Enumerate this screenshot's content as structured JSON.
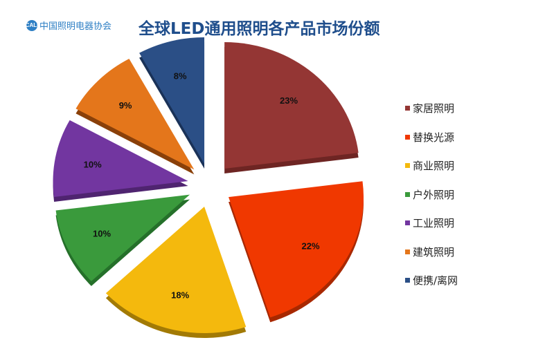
{
  "header": {
    "logo_mark": "CALI",
    "logo_text": "中国照明电器协会",
    "title": "全球LED通用照明各产品市场份额"
  },
  "chart_data": {
    "type": "pie",
    "title": "全球LED通用照明各产品市场份额",
    "style": "3d-exploded",
    "start_angle": "12 o'clock",
    "direction": "clockwise",
    "categories": [
      "家居照明",
      "替换光源",
      "商业照明",
      "户外照明",
      "工业照明",
      "建筑照明",
      "便携/离网"
    ],
    "values": [
      23,
      22,
      18,
      10,
      10,
      9,
      8
    ],
    "labels": [
      "23%",
      "22%",
      "18%",
      "10%",
      "10%",
      "9%",
      "8%"
    ],
    "colors": [
      "#943634",
      "#f03800",
      "#f4b90d",
      "#3a9a3c",
      "#7236a0",
      "#e4761b",
      "#2b4f86"
    ],
    "side_colors": [
      "#6e2523",
      "#a82800",
      "#a27a05",
      "#25702a",
      "#4f2470",
      "#8a4009",
      "#1a3258"
    ],
    "legend_position": "right"
  },
  "legend": {
    "items": [
      {
        "label": "家居照明",
        "color": "#943634"
      },
      {
        "label": "替换光源",
        "color": "#f03800"
      },
      {
        "label": "商业照明",
        "color": "#f4b90d"
      },
      {
        "label": "户外照明",
        "color": "#3a9a3c"
      },
      {
        "label": "工业照明",
        "color": "#7236a0"
      },
      {
        "label": "建筑照明",
        "color": "#e4761b"
      },
      {
        "label": "便携/离网",
        "color": "#2b4f86"
      }
    ]
  }
}
